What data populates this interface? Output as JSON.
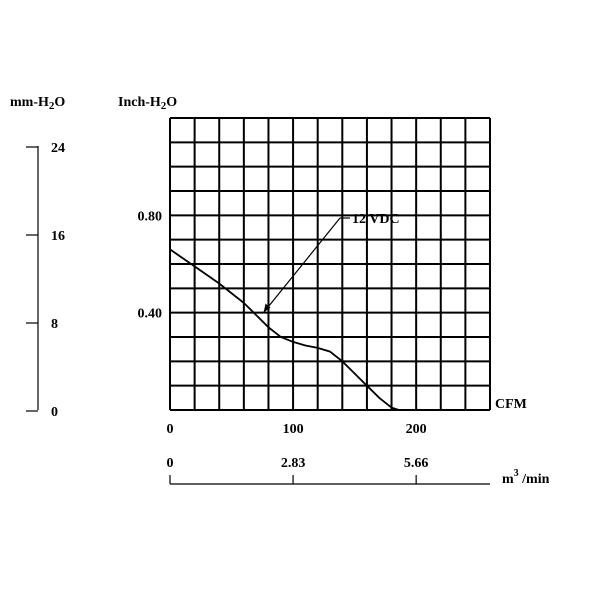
{
  "chart_data": {
    "type": "line",
    "xlabel": "CFM",
    "ylabel": "Inch-H2O",
    "left_axis_label": "mm-H2O",
    "secondary_x_label_base": "m",
    "secondary_x_label_sup": "3",
    "secondary_x_label_suffix": " /min",
    "xlim": [
      0,
      260
    ],
    "ylim": [
      0,
      1.2
    ],
    "grid": true,
    "x_ticks": [
      "0",
      "100",
      "200"
    ],
    "y_ticks": [
      "0.80",
      "0.40"
    ],
    "left_ticks": [
      "24",
      "16",
      "8",
      "0"
    ],
    "m3_ticks": [
      "0",
      "2.83",
      "5.66"
    ],
    "series": [
      {
        "name": "12 VDC",
        "x": [
          0,
          20,
          40,
          60,
          70,
          80,
          90,
          100,
          110,
          120,
          130,
          140,
          150,
          160,
          170,
          180,
          186
        ],
        "y": [
          0.66,
          0.59,
          0.52,
          0.44,
          0.39,
          0.34,
          0.3,
          0.28,
          0.265,
          0.255,
          0.24,
          0.2,
          0.15,
          0.1,
          0.05,
          0.01,
          0
        ]
      }
    ],
    "annotation": "12 VDC"
  }
}
